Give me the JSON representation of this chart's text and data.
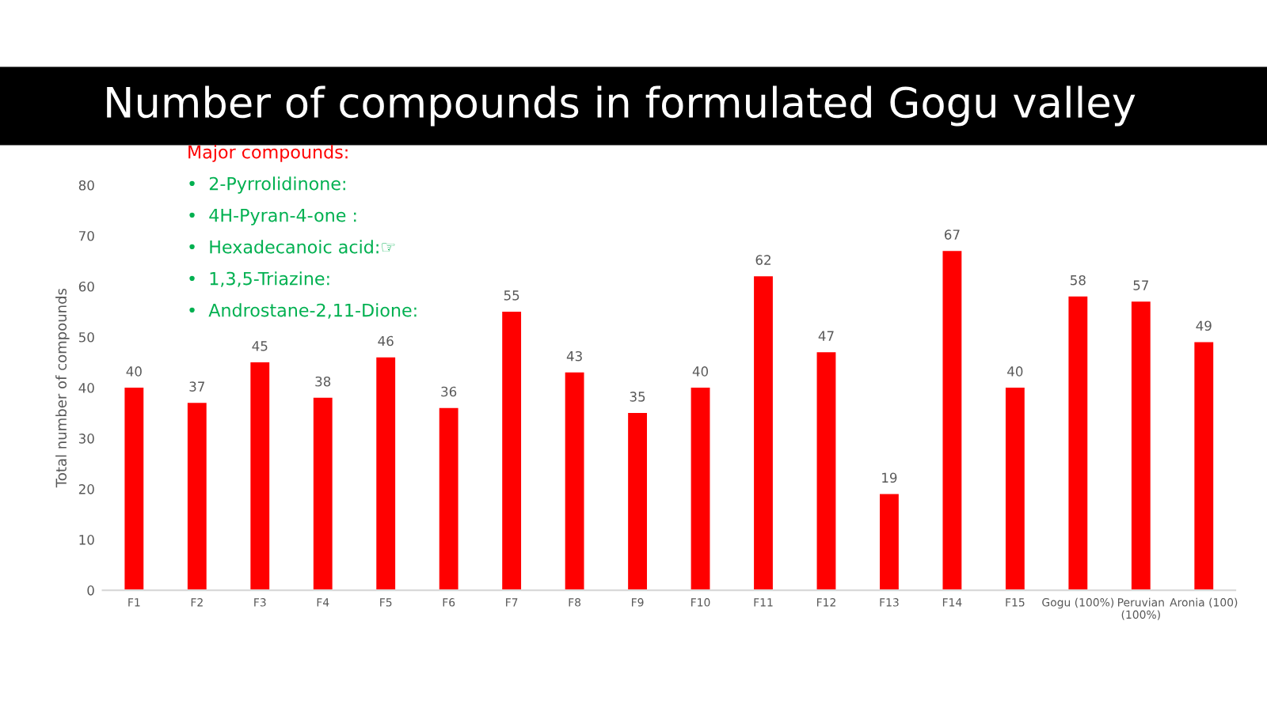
{
  "chart_data": {
    "type": "bar",
    "title": "Number of compounds in formulated Gogu valley",
    "ylabel": "Total number of compounds",
    "categories": [
      "F1",
      "F2",
      "F3",
      "F4",
      "F5",
      "F6",
      "F7",
      "F8",
      "F9",
      "F10",
      "F11",
      "F12",
      "F13",
      "F14",
      "F15",
      "Gogu (100%)",
      "Peruvian\n(100%)",
      "Aronia (100)"
    ],
    "values": [
      40,
      37,
      45,
      38,
      46,
      36,
      55,
      43,
      35,
      40,
      62,
      47,
      19,
      67,
      40,
      58,
      57,
      49
    ],
    "color": "#ff0000",
    "data_labels": true,
    "ylim": [
      0,
      80
    ],
    "yticks": [
      0,
      10,
      20,
      30,
      40,
      50,
      60,
      70,
      80
    ],
    "grid": false,
    "annotations": [
      "Major compounds:",
      "•  2-Pyrrolidinone:",
      "•  4H-Pyran-4-one :",
      "•  Hexadecanoic acid:☞",
      "•  1,3,5-Triazine:",
      "•  Androstane-2,11-Dione:"
    ]
  }
}
